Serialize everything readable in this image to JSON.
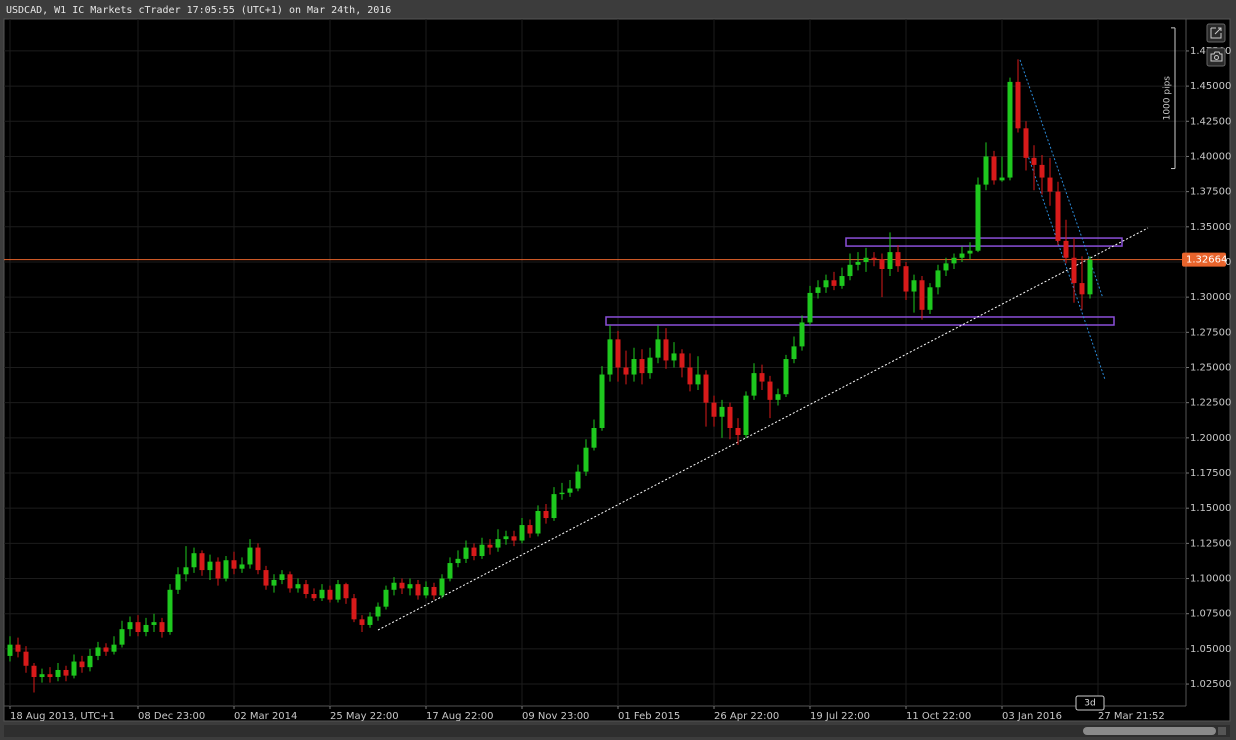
{
  "chart_data": {
    "type": "candlestick",
    "title": "USDCAD, W1 IC Markets cTrader 17:05:55 (UTC+1) on Mar 24th, 2016",
    "up_color": "#1ec81e",
    "down_color": "#d81a1a",
    "open": [
      1.045,
      1.053,
      1.048,
      1.038,
      1.03,
      1.032,
      1.03,
      1.035,
      1.031,
      1.041,
      1.037,
      1.045,
      1.051,
      1.048,
      1.053,
      1.064,
      1.069,
      1.062,
      1.067,
      1.069,
      1.062,
      1.092,
      1.103,
      1.108,
      1.118,
      1.106,
      1.112,
      1.1,
      1.113,
      1.107,
      1.11,
      1.122,
      1.106,
      1.095,
      1.099,
      1.103,
      1.093,
      1.096,
      1.089,
      1.086,
      1.092,
      1.085,
      1.096,
      1.086,
      1.071,
      1.067,
      1.073,
      1.08,
      1.092,
      1.097,
      1.093,
      1.096,
      1.088,
      1.094,
      1.088,
      1.1,
      1.111,
      1.114,
      1.122,
      1.116,
      1.124,
      1.122,
      1.128,
      1.13,
      1.127,
      1.138,
      1.132,
      1.148,
      1.143,
      1.16,
      1.161,
      1.164,
      1.176,
      1.193,
      1.207,
      1.245,
      1.27,
      1.25,
      1.245,
      1.256,
      1.246,
      1.257,
      1.27,
      1.255,
      1.26,
      1.25,
      1.238,
      1.245,
      1.225,
      1.215,
      1.222,
      1.207,
      1.202,
      1.23,
      1.246,
      1.24,
      1.227,
      1.231,
      1.256,
      1.265,
      1.282,
      1.303,
      1.307,
      1.312,
      1.308,
      1.315,
      1.323,
      1.325,
      1.328,
      1.327,
      1.32,
      1.332,
      1.322,
      1.304,
      1.312,
      1.291,
      1.307,
      1.319,
      1.324,
      1.328,
      1.331,
      1.333,
      1.38,
      1.4,
      1.383,
      1.385,
      1.453,
      1.42,
      1.399,
      1.394,
      1.385,
      1.375,
      1.34,
      1.328,
      1.31,
      1.302
    ],
    "high": [
      1.059,
      1.058,
      1.052,
      1.04,
      1.036,
      1.037,
      1.04,
      1.038,
      1.046,
      1.045,
      1.05,
      1.055,
      1.054,
      1.059,
      1.07,
      1.073,
      1.074,
      1.072,
      1.075,
      1.072,
      1.096,
      1.108,
      1.123,
      1.122,
      1.12,
      1.117,
      1.115,
      1.116,
      1.119,
      1.115,
      1.128,
      1.125,
      1.109,
      1.103,
      1.106,
      1.105,
      1.1,
      1.099,
      1.093,
      1.096,
      1.095,
      1.099,
      1.097,
      1.089,
      1.074,
      1.076,
      1.083,
      1.095,
      1.101,
      1.1,
      1.1,
      1.099,
      1.098,
      1.097,
      1.103,
      1.115,
      1.12,
      1.127,
      1.125,
      1.129,
      1.128,
      1.135,
      1.134,
      1.134,
      1.143,
      1.142,
      1.152,
      1.153,
      1.165,
      1.168,
      1.17,
      1.181,
      1.199,
      1.213,
      1.251,
      1.28,
      1.276,
      1.262,
      1.264,
      1.263,
      1.264,
      1.28,
      1.278,
      1.268,
      1.263,
      1.26,
      1.258,
      1.248,
      1.23,
      1.227,
      1.225,
      1.214,
      1.233,
      1.253,
      1.252,
      1.244,
      1.235,
      1.259,
      1.272,
      1.287,
      1.308,
      1.312,
      1.316,
      1.318,
      1.321,
      1.331,
      1.332,
      1.335,
      1.332,
      1.331,
      1.346,
      1.337,
      1.325,
      1.316,
      1.315,
      1.31,
      1.323,
      1.328,
      1.331,
      1.336,
      1.339,
      1.385,
      1.41,
      1.404,
      1.4,
      1.456,
      1.469,
      1.425,
      1.408,
      1.401,
      1.399,
      1.382,
      1.355,
      1.342,
      1.329,
      1.329
    ],
    "low": [
      1.041,
      1.044,
      1.033,
      1.019,
      1.026,
      1.026,
      1.027,
      1.027,
      1.029,
      1.033,
      1.034,
      1.042,
      1.045,
      1.046,
      1.051,
      1.059,
      1.059,
      1.059,
      1.062,
      1.058,
      1.06,
      1.089,
      1.098,
      1.104,
      1.102,
      1.099,
      1.095,
      1.098,
      1.103,
      1.104,
      1.107,
      1.103,
      1.092,
      1.09,
      1.096,
      1.09,
      1.09,
      1.086,
      1.084,
      1.084,
      1.083,
      1.083,
      1.082,
      1.069,
      1.062,
      1.065,
      1.07,
      1.078,
      1.088,
      1.089,
      1.088,
      1.085,
      1.086,
      1.085,
      1.086,
      1.098,
      1.108,
      1.111,
      1.113,
      1.114,
      1.117,
      1.119,
      1.124,
      1.123,
      1.125,
      1.129,
      1.13,
      1.139,
      1.141,
      1.156,
      1.158,
      1.162,
      1.173,
      1.191,
      1.205,
      1.24,
      1.24,
      1.238,
      1.24,
      1.238,
      1.242,
      1.253,
      1.249,
      1.25,
      1.243,
      1.233,
      1.234,
      1.208,
      1.208,
      1.2,
      1.199,
      1.195,
      1.2,
      1.227,
      1.234,
      1.214,
      1.223,
      1.229,
      1.253,
      1.262,
      1.28,
      1.299,
      1.303,
      1.305,
      1.306,
      1.312,
      1.319,
      1.318,
      1.322,
      1.3,
      1.315,
      1.318,
      1.298,
      1.289,
      1.284,
      1.288,
      1.302,
      1.315,
      1.32,
      1.325,
      1.327,
      1.332,
      1.376,
      1.38,
      1.382,
      1.383,
      1.417,
      1.39,
      1.376,
      1.373,
      1.365,
      1.337,
      1.324,
      1.296,
      1.291,
      1.299
    ],
    "close": [
      1.053,
      1.048,
      1.038,
      1.03,
      1.032,
      1.03,
      1.035,
      1.031,
      1.041,
      1.037,
      1.045,
      1.051,
      1.048,
      1.053,
      1.064,
      1.069,
      1.062,
      1.067,
      1.069,
      1.062,
      1.092,
      1.103,
      1.108,
      1.118,
      1.106,
      1.112,
      1.1,
      1.113,
      1.107,
      1.11,
      1.122,
      1.106,
      1.095,
      1.099,
      1.103,
      1.093,
      1.096,
      1.089,
      1.086,
      1.092,
      1.085,
      1.096,
      1.086,
      1.071,
      1.067,
      1.073,
      1.08,
      1.092,
      1.097,
      1.093,
      1.096,
      1.088,
      1.094,
      1.088,
      1.1,
      1.111,
      1.114,
      1.122,
      1.116,
      1.124,
      1.122,
      1.128,
      1.13,
      1.127,
      1.138,
      1.132,
      1.148,
      1.143,
      1.16,
      1.161,
      1.164,
      1.176,
      1.193,
      1.207,
      1.245,
      1.27,
      1.25,
      1.245,
      1.256,
      1.246,
      1.257,
      1.27,
      1.255,
      1.26,
      1.25,
      1.238,
      1.245,
      1.225,
      1.215,
      1.222,
      1.207,
      1.202,
      1.23,
      1.246,
      1.24,
      1.227,
      1.231,
      1.256,
      1.265,
      1.282,
      1.303,
      1.307,
      1.312,
      1.308,
      1.315,
      1.323,
      1.325,
      1.328,
      1.327,
      1.32,
      1.332,
      1.322,
      1.304,
      1.312,
      1.291,
      1.307,
      1.319,
      1.324,
      1.328,
      1.331,
      1.333,
      1.38,
      1.4,
      1.383,
      1.385,
      1.453,
      1.42,
      1.399,
      1.394,
      1.385,
      1.375,
      1.34,
      1.328,
      1.31,
      1.302,
      1.3266
    ],
    "xlim": [
      -0.75,
      147
    ],
    "ylim": [
      1.0094,
      1.4977
    ],
    "xticks": [
      {
        "value": 0,
        "label": "18 Aug 2013, UTC+1"
      },
      {
        "value": 16,
        "label": "08 Dec 23:00"
      },
      {
        "value": 28,
        "label": "02 Mar 2014"
      },
      {
        "value": 40,
        "label": "25 May 22:00"
      },
      {
        "value": 52,
        "label": "17 Aug 22:00"
      },
      {
        "value": 64,
        "label": "09 Nov 23:00"
      },
      {
        "value": 76,
        "label": "01 Feb 2015"
      },
      {
        "value": 88,
        "label": "26 Apr 22:00"
      },
      {
        "value": 100,
        "label": "19 Jul 22:00"
      },
      {
        "value": 112,
        "label": "11 Oct 22:00"
      },
      {
        "value": 124,
        "label": "03 Jan 2016"
      },
      {
        "value": 136,
        "label": "27 Mar 21:52"
      }
    ],
    "yticks": [
      {
        "value": 1.025,
        "label": "1.02500"
      },
      {
        "value": 1.05,
        "label": "1.05000"
      },
      {
        "value": 1.075,
        "label": "1.07500"
      },
      {
        "value": 1.1,
        "label": "1.10000"
      },
      {
        "value": 1.125,
        "label": "1.12500"
      },
      {
        "value": 1.15,
        "label": "1.15000"
      },
      {
        "value": 1.175,
        "label": "1.17500"
      },
      {
        "value": 1.2,
        "label": "1.20000"
      },
      {
        "value": 1.225,
        "label": "1.22500"
      },
      {
        "value": 1.25,
        "label": "1.25000"
      },
      {
        "value": 1.275,
        "label": "1.27500"
      },
      {
        "value": 1.3,
        "label": "1.30000"
      },
      {
        "value": 1.325,
        "label": "1.32500"
      },
      {
        "value": 1.35,
        "label": "1.35000"
      },
      {
        "value": 1.375,
        "label": "1.37500"
      },
      {
        "value": 1.4,
        "label": "1.40000"
      },
      {
        "value": 1.425,
        "label": "1.42500"
      },
      {
        "value": 1.45,
        "label": "1.45000"
      },
      {
        "value": 1.475,
        "label": "1.47500"
      }
    ],
    "grid": true,
    "current_price": 1.32664,
    "price_color": "#e8642c",
    "countdown": "3d",
    "ruler": {
      "label": "1000 pips",
      "top": 1.4914,
      "size": 0.1
    },
    "rectangles": [
      {
        "x": [
          104.5,
          139
        ],
        "y": [
          1.3363,
          1.342
        ],
        "color": "#8a4fd8"
      },
      {
        "x": [
          74.5,
          138
        ],
        "y": [
          1.2802,
          1.2859
        ],
        "color": "#8a4fd8"
      }
    ],
    "trendlines": [
      {
        "x": [
          46,
          142.25
        ],
        "y": [
          1.0634,
          1.3492
        ],
        "color": "#ffffff"
      },
      {
        "x": [
          126.25,
          136.6
        ],
        "y": [
          1.4686,
          1.2996
        ],
        "color": "#2a8ad8"
      },
      {
        "x": [
          127,
          136.9
        ],
        "y": [
          1.4047,
          1.2411
        ],
        "color": "#2a8ad8"
      }
    ]
  }
}
